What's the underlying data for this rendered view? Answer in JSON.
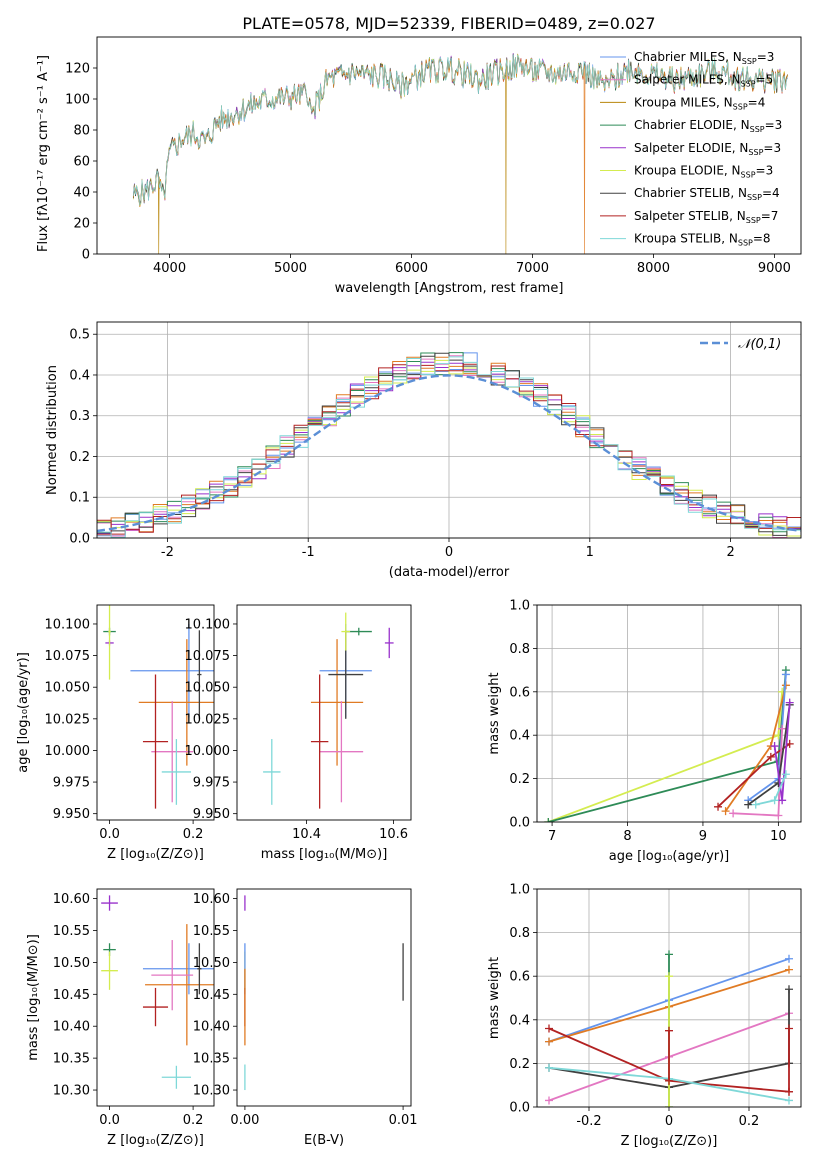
{
  "title": "PLATE=0578, MJD=52339, FIBERID=0489, z=0.027",
  "colors": {
    "Chabrier MILES": "#6495ed",
    "Salpeter MILES": "#e377c2",
    "Kroupa MILES": "#b8860b",
    "Chabrier ELODIE": "#2e8b57",
    "Salpeter ELODIE": "#9932cc",
    "Kroupa ELODIE": "#d4ec50",
    "Chabrier STELIB": "#404040",
    "Salpeter STELIB": "#b22222",
    "Kroupa STELIB": "#7fd8d8",
    "extra_orange": "#e07b24",
    "normal_curve": "#5b8fd6"
  },
  "chart_data": [
    {
      "id": "spectrum",
      "type": "line",
      "xlabel": "wavelength [Angstrom, rest frame]",
      "ylabel": "Flux [fλ10⁻¹⁷ erg cm⁻² s⁻¹ A⁻¹]",
      "xlim": [
        3400,
        9220
      ],
      "ylim": [
        0,
        140
      ],
      "xticks": [
        4000,
        5000,
        6000,
        7000,
        8000,
        9000
      ],
      "yticks": [
        0,
        20,
        40,
        60,
        80,
        100,
        120
      ],
      "legend_position": "upper right",
      "legend": [
        "Chabrier MILES, N_SSP=3",
        "Salpeter MILES, N_SSP=5",
        "Kroupa MILES, N_SSP=4",
        "Chabrier ELODIE, N_SSP=3",
        "Salpeter ELODIE, N_SSP=3",
        "Kroupa ELODIE, N_SSP=3",
        "Chabrier STELIB, N_SSP=4",
        "Salpeter STELIB, N_SSP=7",
        "Kroupa STELIB, N_SSP=8"
      ],
      "continuum_knots": [
        [
          3700,
          38
        ],
        [
          3800,
          40
        ],
        [
          3900,
          48
        ],
        [
          3950,
          35
        ],
        [
          4000,
          65
        ],
        [
          4100,
          74
        ],
        [
          4200,
          78
        ],
        [
          4300,
          72
        ],
        [
          4400,
          86
        ],
        [
          4600,
          93
        ],
        [
          4800,
          100
        ],
        [
          5000,
          101
        ],
        [
          5150,
          104
        ],
        [
          5170,
          88
        ],
        [
          5300,
          112
        ],
        [
          5500,
          117
        ],
        [
          5800,
          114
        ],
        [
          5900,
          108
        ],
        [
          6100,
          117
        ],
        [
          6300,
          120
        ],
        [
          6560,
          112
        ],
        [
          6700,
          117
        ],
        [
          6900,
          122
        ],
        [
          7000,
          118
        ],
        [
          7200,
          116
        ],
        [
          7400,
          120
        ],
        [
          7600,
          108
        ],
        [
          7800,
          120
        ],
        [
          8000,
          115
        ],
        [
          8200,
          112
        ],
        [
          8500,
          118
        ],
        [
          8700,
          114
        ],
        [
          8900,
          112
        ],
        [
          9100,
          113
        ]
      ],
      "spikes": [
        {
          "series": "Kroupa MILES",
          "x": 3910,
          "y": 0
        },
        {
          "series": "Kroupa MILES",
          "x": 6780,
          "y": 0
        },
        {
          "series": "Salpeter STELIB",
          "x": 7430,
          "y": 0
        }
      ]
    },
    {
      "id": "residuals",
      "type": "bar",
      "xlabel": "(data-model)/error",
      "ylabel": "Normed distribution",
      "xlim": [
        -2.5,
        2.5
      ],
      "ylim": [
        0,
        0.53
      ],
      "xticks": [
        -2,
        -1,
        0,
        1,
        2
      ],
      "yticks": [
        0.0,
        0.1,
        0.2,
        0.3,
        0.4,
        0.5
      ],
      "grid": true,
      "legend_position": "upper right",
      "legend": [
        "𝒩(0,1)"
      ],
      "bin_width": 0.1,
      "series_envelope_peak": 0.45,
      "normal_pdf": {
        "mean": 0,
        "sigma": 1
      }
    },
    {
      "id": "age-vs-Z",
      "type": "scatter",
      "xlabel": "Z [log₁₀(Z/Z⊙)]",
      "ylabel": "age  [log₁₀(age/yr)]",
      "xlim": [
        -0.03,
        0.25
      ],
      "ylim": [
        9.945,
        10.115
      ],
      "xticks": [
        0.0,
        0.2
      ],
      "yticks": [
        9.95,
        9.975,
        10.0,
        10.025,
        10.05,
        10.075,
        10.1
      ],
      "xticklabels": [
        "0.0",
        "0.2"
      ],
      "yticklabels": [
        "9.950",
        "9.975",
        "10.000",
        "10.025",
        "10.050",
        "10.075",
        "10.100"
      ],
      "points": [
        {
          "series": "Chabrier MILES",
          "x": 0.19,
          "y": 10.063,
          "xerr": 0.14,
          "yerr": 0.037
        },
        {
          "series": "extra_orange",
          "x": 0.185,
          "y": 10.038,
          "xerr": 0.115,
          "yerr": 0.05
        },
        {
          "series": "Salpeter MILES",
          "x": 0.15,
          "y": 9.999,
          "xerr": 0.05,
          "yerr": 0.04
        },
        {
          "series": "Salpeter STELIB",
          "x": 0.11,
          "y": 10.007,
          "xerr": 0.03,
          "yerr": 0.053
        },
        {
          "series": "Kroupa STELIB",
          "x": 0.16,
          "y": 9.983,
          "xerr": 0.035,
          "yerr": 0.026
        },
        {
          "series": "Chabrier STELIB",
          "x": 0.215,
          "y": 10.06,
          "xerr": 0.005,
          "yerr": 0.035
        },
        {
          "series": "Chabrier ELODIE",
          "x": 0.0,
          "y": 10.094,
          "xerr": 0.015,
          "yerr": 0.003
        },
        {
          "series": "Salpeter ELODIE",
          "x": 0.0,
          "y": 10.085,
          "xerr": 0.01,
          "yerr": 0.002
        },
        {
          "series": "Kroupa ELODIE",
          "x": 0.0,
          "y": 10.094,
          "xerr": 0.003,
          "yerr": 0.038
        }
      ]
    },
    {
      "id": "age-vs-mass",
      "type": "scatter",
      "xlabel": "mass [log₁₀(M/M⊙)]",
      "ylabel": "",
      "xlim": [
        10.24,
        10.64
      ],
      "ylim": [
        9.945,
        10.115
      ],
      "xticks": [
        10.4,
        10.6
      ],
      "yticks": [
        9.95,
        9.975,
        10.0,
        10.025,
        10.05,
        10.075,
        10.1
      ],
      "xticklabels": [
        "10.4",
        "10.6"
      ],
      "yticklabels": [
        "9.950",
        "9.975",
        "10.000",
        "10.025",
        "10.050",
        "10.075",
        "10.100"
      ],
      "points": [
        {
          "series": "Chabrier MILES",
          "x": 10.49,
          "y": 10.063,
          "xerr": 0.06,
          "yerr": 0.037
        },
        {
          "series": "extra_orange",
          "x": 10.47,
          "y": 10.038,
          "xerr": 0.06,
          "yerr": 0.05
        },
        {
          "series": "Salpeter MILES",
          "x": 10.48,
          "y": 9.999,
          "xerr": 0.05,
          "yerr": 0.04
        },
        {
          "series": "Salpeter STELIB",
          "x": 10.43,
          "y": 10.007,
          "xerr": 0.02,
          "yerr": 0.053
        },
        {
          "series": "Kroupa STELIB",
          "x": 10.32,
          "y": 9.983,
          "xerr": 0.02,
          "yerr": 0.026
        },
        {
          "series": "Chabrier STELIB",
          "x": 10.49,
          "y": 10.06,
          "xerr": 0.04,
          "yerr": 0.035
        },
        {
          "series": "Chabrier ELODIE",
          "x": 10.52,
          "y": 10.094,
          "xerr": 0.03,
          "yerr": 0.003
        },
        {
          "series": "Salpeter ELODIE",
          "x": 10.59,
          "y": 10.085,
          "xerr": 0.01,
          "yerr": 0.012
        },
        {
          "series": "Kroupa ELODIE",
          "x": 10.49,
          "y": 10.094,
          "xerr": 0.01,
          "yerr": 0.015
        }
      ]
    },
    {
      "id": "weight-vs-age",
      "type": "line",
      "xlabel": "age  [log₁₀(age/yr)]",
      "ylabel": "mass weight",
      "xlim": [
        6.8,
        10.3
      ],
      "ylim": [
        0,
        1.0
      ],
      "xticks": [
        7,
        8,
        9,
        10
      ],
      "yticks": [
        0.0,
        0.2,
        0.4,
        0.6,
        0.8,
        1.0
      ],
      "grid": true,
      "series": [
        {
          "series": "Kroupa ELODIE",
          "points": [
            [
              6.95,
              0.0
            ],
            [
              10.0,
              0.4
            ],
            [
              10.05,
              0.6
            ]
          ]
        },
        {
          "series": "Chabrier ELODIE",
          "points": [
            [
              6.95,
              0.0
            ],
            [
              10.0,
              0.28
            ],
            [
              10.1,
              0.7
            ]
          ]
        },
        {
          "series": "extra_orange",
          "points": [
            [
              9.3,
              0.05
            ],
            [
              9.9,
              0.35
            ],
            [
              10.1,
              0.63
            ]
          ]
        },
        {
          "series": "Chabrier MILES",
          "points": [
            [
              9.6,
              0.1
            ],
            [
              10.0,
              0.2
            ],
            [
              10.1,
              0.68
            ]
          ]
        },
        {
          "series": "Salpeter STELIB",
          "points": [
            [
              9.2,
              0.07
            ],
            [
              9.9,
              0.3
            ],
            [
              10.15,
              0.36
            ]
          ]
        },
        {
          "series": "Salpeter MILES",
          "points": [
            [
              9.4,
              0.04
            ],
            [
              10.0,
              0.03
            ],
            [
              10.05,
              0.43
            ]
          ]
        },
        {
          "series": "Chabrier STELIB",
          "points": [
            [
              9.6,
              0.08
            ],
            [
              10.0,
              0.18
            ],
            [
              10.15,
              0.54
            ]
          ]
        },
        {
          "series": "Salpeter ELODIE",
          "points": [
            [
              9.95,
              0.35
            ],
            [
              10.05,
              0.1
            ],
            [
              10.15,
              0.55
            ]
          ]
        },
        {
          "series": "Kroupa STELIB",
          "points": [
            [
              9.7,
              0.08
            ],
            [
              9.95,
              0.1
            ],
            [
              10.1,
              0.22
            ]
          ]
        }
      ]
    },
    {
      "id": "mass-vs-Z",
      "type": "scatter",
      "xlabel": "Z [log₁₀(Z/Z⊙)]",
      "ylabel": "mass [log₁₀(M/M⊙)]",
      "xlim": [
        -0.03,
        0.25
      ],
      "ylim": [
        10.275,
        10.615
      ],
      "xticks": [
        0.0,
        0.2
      ],
      "yticks": [
        10.3,
        10.35,
        10.4,
        10.45,
        10.5,
        10.55,
        10.6
      ],
      "xticklabels": [
        "0.0",
        "0.2"
      ],
      "yticklabels": [
        "10.30",
        "10.35",
        "10.40",
        "10.45",
        "10.50",
        "10.55",
        "10.60"
      ],
      "points": [
        {
          "series": "Chabrier MILES",
          "x": 0.19,
          "y": 10.49,
          "xerr": 0.11,
          "yerr": 0.04
        },
        {
          "series": "extra_orange",
          "x": 0.185,
          "y": 10.465,
          "xerr": 0.1,
          "yerr": 0.095
        },
        {
          "series": "Salpeter MILES",
          "x": 0.15,
          "y": 10.48,
          "xerr": 0.05,
          "yerr": 0.055
        },
        {
          "series": "Salpeter STELIB",
          "x": 0.11,
          "y": 10.43,
          "xerr": 0.03,
          "yerr": 0.03
        },
        {
          "series": "Kroupa STELIB",
          "x": 0.16,
          "y": 10.32,
          "xerr": 0.035,
          "yerr": 0.018
        },
        {
          "series": "Chabrier STELIB",
          "x": 0.215,
          "y": 10.49,
          "xerr": 0.005,
          "yerr": 0.04
        },
        {
          "series": "Chabrier ELODIE",
          "x": 0.0,
          "y": 10.52,
          "xerr": 0.015,
          "yerr": 0.01
        },
        {
          "series": "Salpeter ELODIE",
          "x": 0.0,
          "y": 10.593,
          "xerr": 0.02,
          "yerr": 0.012
        },
        {
          "series": "Kroupa ELODIE",
          "x": 0.0,
          "y": 10.487,
          "xerr": 0.02,
          "yerr": 0.03
        }
      ]
    },
    {
      "id": "mass-vs-EBV",
      "type": "scatter",
      "xlabel": "E(B-V)",
      "ylabel": "",
      "xlim": [
        -0.0005,
        0.0105
      ],
      "ylim": [
        10.275,
        10.615
      ],
      "xticks": [
        0.0,
        0.01
      ],
      "yticks": [
        10.3,
        10.35,
        10.4,
        10.45,
        10.5,
        10.55,
        10.6
      ],
      "xticklabels": [
        "0.00",
        "0.01"
      ],
      "yticklabels": [
        "10.30",
        "10.35",
        "10.40",
        "10.45",
        "10.50",
        "10.55",
        "10.60"
      ],
      "points": [
        {
          "series": "Salpeter ELODIE",
          "x": 0.0,
          "y": 10.593,
          "xerr": 0.0,
          "yerr": 0.012
        },
        {
          "series": "Kroupa ELODIE",
          "x": 0.0,
          "y": 10.487,
          "xerr": 0.0,
          "yerr": 0.03
        },
        {
          "series": "Chabrier MILES",
          "x": 0.0,
          "y": 10.49,
          "xerr": 0.0,
          "yerr": 0.04
        },
        {
          "series": "Salpeter STELIB",
          "x": 0.0,
          "y": 10.43,
          "xerr": 0.0,
          "yerr": 0.03
        },
        {
          "series": "extra_orange",
          "x": 0.0,
          "y": 10.43,
          "xerr": 0.0,
          "yerr": 0.06
        },
        {
          "series": "Kroupa STELIB",
          "x": 0.0,
          "y": 10.32,
          "xerr": 0.0,
          "yerr": 0.02
        },
        {
          "series": "Chabrier STELIB",
          "x": 0.01,
          "y": 10.485,
          "xerr": 0.0,
          "yerr": 0.045
        }
      ]
    },
    {
      "id": "weight-vs-Z",
      "type": "line",
      "xlabel": "Z [log₁₀(Z/Z⊙)]",
      "ylabel": "mass weight",
      "xlim": [
        -0.33,
        0.33
      ],
      "ylim": [
        0,
        1.0
      ],
      "xticks": [
        -0.2,
        0.0,
        0.2
      ],
      "yticks": [
        0.0,
        0.2,
        0.4,
        0.6,
        0.8,
        1.0
      ],
      "grid": true,
      "series": [
        {
          "series": "Chabrier MILES",
          "points": [
            [
              -0.3,
              0.3
            ],
            [
              0.0,
              0.49
            ],
            [
              0.3,
              0.68
            ]
          ]
        },
        {
          "series": "extra_orange",
          "points": [
            [
              -0.3,
              0.3
            ],
            [
              0.0,
              0.46
            ],
            [
              0.3,
              0.63
            ]
          ]
        },
        {
          "series": "Salpeter MILES",
          "points": [
            [
              -0.3,
              0.03
            ],
            [
              0.0,
              0.23
            ],
            [
              0.3,
              0.43
            ]
          ]
        },
        {
          "series": "Salpeter STELIB",
          "points": [
            [
              -0.3,
              0.36
            ],
            [
              0.0,
              0.12
            ],
            [
              0.3,
              0.07
            ]
          ]
        },
        {
          "series": "Chabrier STELIB",
          "points": [
            [
              -0.3,
              0.18
            ],
            [
              0.0,
              0.09
            ],
            [
              0.3,
              0.2
            ]
          ]
        },
        {
          "series": "Kroupa STELIB",
          "points": [
            [
              -0.3,
              0.18
            ],
            [
              0.0,
              0.13
            ],
            [
              0.3,
              0.03
            ]
          ]
        },
        {
          "series": "Chabrier ELODIE",
          "points": [
            [
              0.0,
              0.7
            ],
            [
              0.0,
              0.0
            ]
          ]
        },
        {
          "series": "Kroupa ELODIE",
          "points": [
            [
              0.0,
              0.6
            ],
            [
              0.0,
              0.0
            ]
          ]
        },
        {
          "series": "Salpeter STELIB",
          "points": [
            [
              0.0,
              0.35
            ],
            [
              0.0,
              0.12
            ]
          ]
        },
        {
          "series": "Chabrier STELIB",
          "points": [
            [
              0.3,
              0.54
            ],
            [
              0.3,
              0.2
            ]
          ]
        },
        {
          "series": "Salpeter STELIB",
          "points": [
            [
              0.3,
              0.36
            ],
            [
              0.3,
              0.07
            ]
          ]
        }
      ]
    }
  ]
}
